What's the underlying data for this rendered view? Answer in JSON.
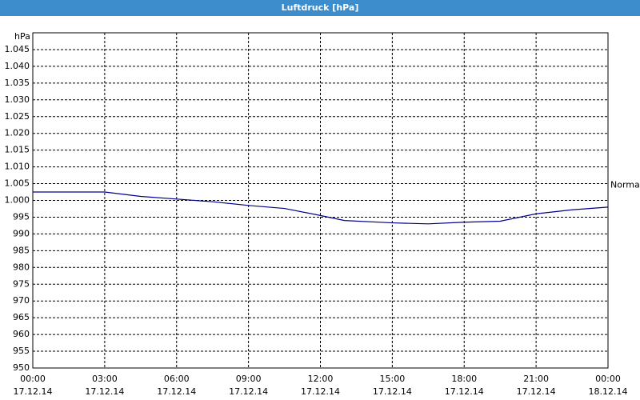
{
  "window_title": "Luftdruck [hPa]",
  "chart_data": {
    "type": "line",
    "y_unit": "hPa",
    "x": [
      0,
      1.5,
      3,
      4.5,
      6,
      7.5,
      9,
      10.5,
      12,
      13,
      15,
      16.5,
      18,
      19.5,
      21,
      22.5,
      24
    ],
    "series": [
      {
        "color": "#00008b",
        "values": [
          1002.5,
          1002.5,
          1002.5,
          1001.2,
          1000.4,
          999.6,
          998.5,
          997.6,
          995.5,
          994,
          993.3,
          993,
          993.5,
          993.8,
          996,
          997.2,
          998
        ]
      }
    ],
    "annotations": [
      {
        "text": "Normal",
        "value": 1004.5
      }
    ],
    "xlim": [
      0,
      24
    ],
    "xticks": [
      {
        "value": 0,
        "label": "00:00",
        "date": "17.12.14"
      },
      {
        "value": 3,
        "label": "03:00",
        "date": "17.12.14"
      },
      {
        "value": 6,
        "label": "06:00",
        "date": "17.12.14"
      },
      {
        "value": 9,
        "label": "09:00",
        "date": "17.12.14"
      },
      {
        "value": 12,
        "label": "12:00",
        "date": "17.12.14"
      },
      {
        "value": 15,
        "label": "15:00",
        "date": "17.12.14"
      },
      {
        "value": 18,
        "label": "18:00",
        "date": "17.12.14"
      },
      {
        "value": 21,
        "label": "21:00",
        "date": "17.12.14"
      },
      {
        "value": 24,
        "label": "00:00",
        "date": "18.12.14"
      }
    ],
    "ylim": [
      950,
      1050
    ],
    "yticks": [
      {
        "value": 950,
        "label": "950"
      },
      {
        "value": 955,
        "label": "955"
      },
      {
        "value": 960,
        "label": "960"
      },
      {
        "value": 965,
        "label": "965"
      },
      {
        "value": 970,
        "label": "970"
      },
      {
        "value": 975,
        "label": "975"
      },
      {
        "value": 980,
        "label": "980"
      },
      {
        "value": 985,
        "label": "985"
      },
      {
        "value": 990,
        "label": "990"
      },
      {
        "value": 995,
        "label": "995"
      },
      {
        "value": 1000,
        "label": "1.000"
      },
      {
        "value": 1005,
        "label": "1.005"
      },
      {
        "value": 1010,
        "label": "1.010"
      },
      {
        "value": 1015,
        "label": "1.015"
      },
      {
        "value": 1020,
        "label": "1.020"
      },
      {
        "value": 1025,
        "label": "1.025"
      },
      {
        "value": 1030,
        "label": "1.030"
      },
      {
        "value": 1035,
        "label": "1.035"
      },
      {
        "value": 1040,
        "label": "1.040"
      },
      {
        "value": 1045,
        "label": "1.045"
      }
    ],
    "grid": true
  }
}
